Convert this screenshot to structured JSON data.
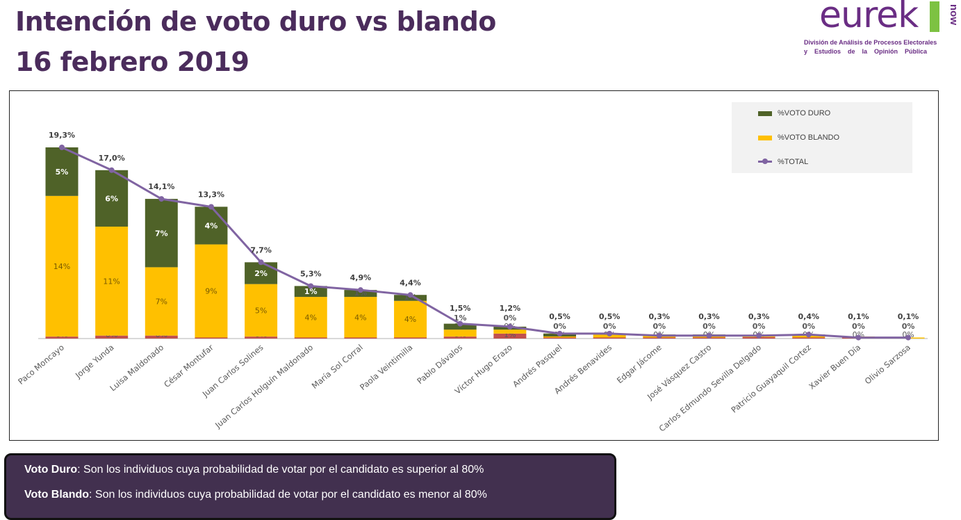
{
  "title_line1": "Intención de voto duro vs blando",
  "title_line2": "16 febrero 2019",
  "logo": {
    "word": "eurek",
    "now": "now",
    "line1": "División de Análisis de Procesos Electorales",
    "line2": "y    Estudios    de    la    Opinión    Pública"
  },
  "notes": [
    {
      "term": "Voto Duro",
      "text": ": Son los individuos cuya probabilidad de votar por el candidato es superior al 80%"
    },
    {
      "term": "Voto Blando",
      "text": ": Son los individuos cuya probabilidad de votar por el candidato es menor al 80%"
    }
  ],
  "chart_data": {
    "type": "bar",
    "stacked": true,
    "legend_position": "top-right",
    "grid": false,
    "ylim": [
      0,
      20
    ],
    "categories": [
      "Paco Moncayo",
      "Jorge Yunda",
      "Luisa Maldonado",
      "César Montufar",
      "Juan Carlos Solines",
      "Juan Carlos Holguín Maldonado",
      "María Sol Corral",
      "Paola Veintimilla",
      "Pablo Dávalos",
      "Víctor Hugo Erazo",
      "Andrés Pasquel",
      "Andrés Benavides",
      "Edgar Jácome",
      "José Vásquez Castro",
      "Carlos Edmundo Sevilla Delgado",
      "Patricio Guayaquil Cortez",
      "Xavier Buen Día",
      "Olivio Sarzosa"
    ],
    "series": [
      {
        "name": "",
        "color": "#c0504d",
        "values": [
          0.2,
          0.3,
          0.3,
          0.1,
          0.2,
          0.1,
          0.1,
          0.1,
          0.2,
          0.5,
          0.1,
          0.1,
          0.05,
          0.05,
          0.15,
          0.1,
          0.05,
          0.0
        ],
        "labels": [
          "0%",
          "0%",
          "0%",
          "0%",
          "0%",
          "0%",
          "0%",
          "0%",
          "0%",
          "1%",
          "0%",
          "0%",
          "0%",
          "0%",
          "0%",
          "0%",
          "0%",
          "0%"
        ]
      },
      {
        "name": "%VOTO BLANDO",
        "color": "#ffc000",
        "values": [
          14.2,
          11.0,
          6.9,
          9.4,
          5.3,
          4.1,
          4.1,
          3.7,
          0.7,
          0.4,
          0.1,
          0.3,
          0.2,
          0.2,
          0.1,
          0.2,
          0.05,
          0.1
        ],
        "labels": [
          "14%",
          "11%",
          "7%",
          "9%",
          "5%",
          "4%",
          "4%",
          "4%",
          "1%",
          "0%",
          "",
          "",
          "",
          "",
          "",
          "",
          "",
          ""
        ]
      },
      {
        "name": "%VOTO DURO",
        "color": "#4f6228",
        "values": [
          4.9,
          5.7,
          6.9,
          3.8,
          2.2,
          1.1,
          0.7,
          0.6,
          0.6,
          0.3,
          0.3,
          0.1,
          0.05,
          0.05,
          0.05,
          0.1,
          0.0,
          0.0
        ],
        "labels": [
          "5%",
          "6%",
          "7%",
          "4%",
          "2%",
          "1%",
          "1%",
          "1%",
          "1%",
          "0%",
          "0%",
          "0%",
          "0%",
          "0%",
          "0%",
          "0%",
          "0%",
          "0%"
        ]
      },
      {
        "name": "%TOTAL",
        "type": "line",
        "color": "#8064a2",
        "values": [
          19.3,
          17.0,
          14.1,
          13.3,
          7.7,
          5.3,
          4.9,
          4.4,
          1.5,
          1.2,
          0.5,
          0.5,
          0.3,
          0.3,
          0.3,
          0.4,
          0.1,
          0.1
        ],
        "labels": [
          "19,3%",
          "17,0%",
          "14,1%",
          "13,3%",
          "7,7%",
          "5,3%",
          "4,9%",
          "4,4%",
          "1,5%",
          "1,2%",
          "0,5%",
          "0,5%",
          "0,3%",
          "0,3%",
          "0,3%",
          "0,4%",
          "0,1%",
          "0,1%"
        ]
      }
    ]
  }
}
